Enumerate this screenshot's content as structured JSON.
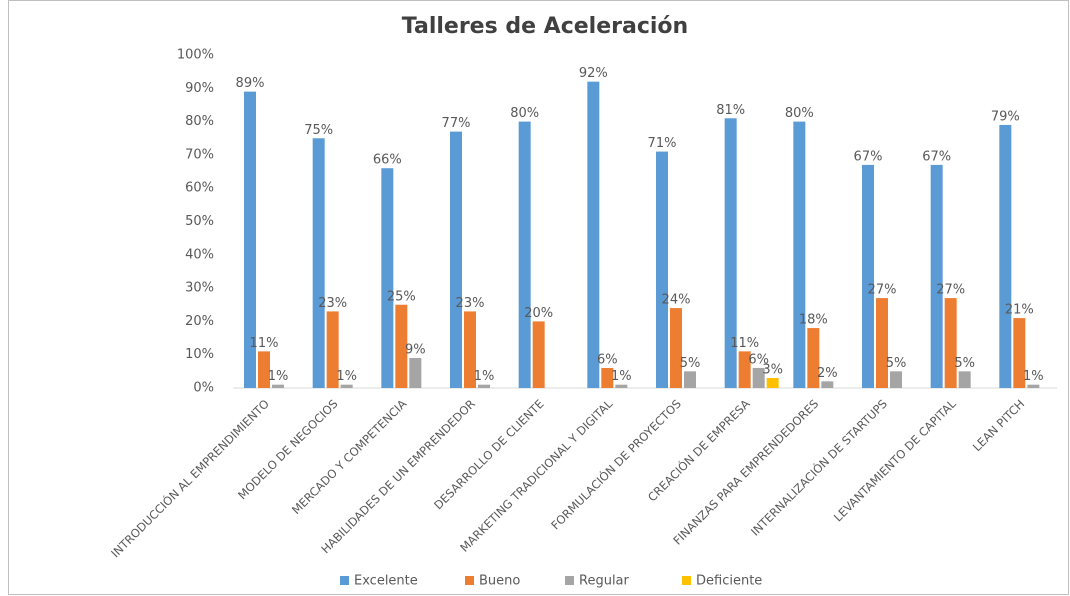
{
  "chart_data": {
    "type": "bar",
    "title": "Talleres de Aceleración",
    "categories": [
      "INTRODUCCIÓN AL EMPRENDIMIENTO",
      "MODELO DE NEGOCIOS",
      "MERCADO Y COMPETENCIA",
      "HABILIDADES DE UN EMPRENDEDOR",
      "DESARROLLO DE CLIENTE",
      "MARKETING TRADICIONAL Y DIGITAL",
      "FORMULACIÓN DE PROYECTOS",
      "CREACIÓN DE EMPRESA",
      "FINANZAS PARA EMPRENDEDORES",
      "INTERNALIZACIÓN DE STARTUPS",
      "LEVANTAMIENTO DE CAPITAL",
      "LEAN PITCH"
    ],
    "series": [
      {
        "name": "Excelente",
        "color": "#5b9bd5",
        "values": [
          89,
          75,
          66,
          77,
          80,
          92,
          71,
          81,
          80,
          67,
          67,
          79
        ],
        "value_labels": [
          "89%",
          "75%",
          "66%",
          "77%",
          "80%",
          "92%",
          "71%",
          "81%",
          "80%",
          "67%",
          "67%",
          "79%"
        ]
      },
      {
        "name": "Bueno",
        "color": "#ed7d31",
        "values": [
          11,
          23,
          25,
          23,
          20,
          6,
          24,
          11,
          18,
          27,
          27,
          21
        ],
        "value_labels": [
          "11%",
          "23%",
          "25%",
          "23%",
          "20%",
          "6%",
          "24%",
          "11%",
          "18%",
          "27%",
          "27%",
          "21%"
        ]
      },
      {
        "name": "Regular",
        "color": "#a5a5a5",
        "values": [
          1,
          1,
          9,
          1,
          null,
          1,
          5,
          6,
          2,
          5,
          5,
          1
        ],
        "value_labels": [
          "1%",
          "1%",
          "9%",
          "1%",
          null,
          "1%",
          "5%",
          "6%",
          "2%",
          "5%",
          "5%",
          "1%"
        ]
      },
      {
        "name": "Deficiente",
        "color": "#ffc000",
        "values": [
          null,
          null,
          null,
          null,
          null,
          null,
          null,
          3,
          null,
          null,
          null,
          null
        ],
        "value_labels": [
          null,
          null,
          null,
          null,
          null,
          null,
          null,
          "3%",
          null,
          null,
          null,
          null
        ]
      }
    ],
    "ylim": [
      0,
      100
    ],
    "yticks": [
      {
        "value": 0,
        "label": "0%"
      },
      {
        "value": 10,
        "label": "10%"
      },
      {
        "value": 20,
        "label": "20%"
      },
      {
        "value": 30,
        "label": "30%"
      },
      {
        "value": 40,
        "label": "40%"
      },
      {
        "value": 50,
        "label": "50%"
      },
      {
        "value": 60,
        "label": "60%"
      },
      {
        "value": 70,
        "label": "70%"
      },
      {
        "value": 80,
        "label": "80%"
      },
      {
        "value": 90,
        "label": "90%"
      },
      {
        "value": 100,
        "label": "100%"
      }
    ],
    "grid": false,
    "legend": "bottom"
  }
}
